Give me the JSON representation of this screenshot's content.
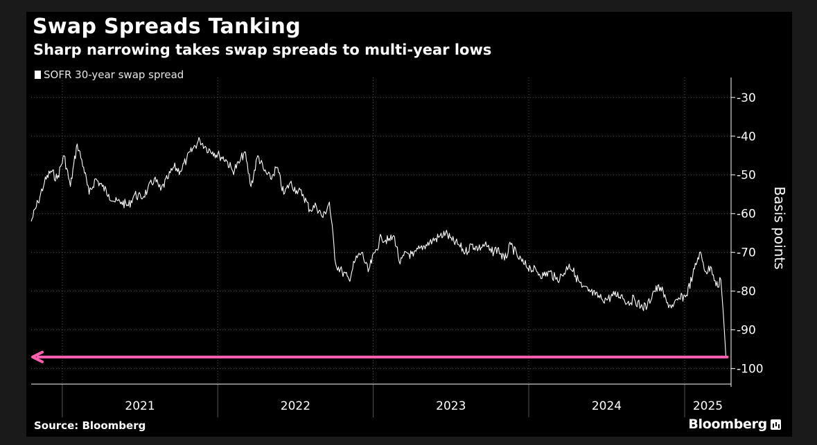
{
  "title": "Swap Spreads Tanking",
  "subtitle": "Sharp narrowing takes swap spreads to multi-year lows",
  "legend_label": "SOFR 30-year swap spread",
  "source": "Source: Bloomberg",
  "brand": "Bloomberg",
  "colors": {
    "background": "#000000",
    "series": "#ffffff",
    "arrow": "#ff5fb0",
    "grid": "#5a5a5a"
  },
  "chart_data": {
    "type": "line",
    "title": "Swap Spreads Tanking",
    "subtitle": "Sharp narrowing takes swap spreads to multi-year lows",
    "ylabel": "Basis points",
    "xlabel": "",
    "y_axis_side": "right",
    "ylim": [
      -104,
      -27
    ],
    "yticks": [
      -30,
      -40,
      -50,
      -60,
      -70,
      -80,
      -90,
      -100
    ],
    "ytick_labels": [
      "-30",
      "-40",
      "-50",
      "-60",
      "-70",
      "-80",
      "-90",
      "-100"
    ],
    "xlim": [
      "2020-10-20",
      "2025-04-20"
    ],
    "xticks": [
      "2021",
      "2022",
      "2023",
      "2024",
      "2025"
    ],
    "grid": true,
    "legend_position": "top-left",
    "series": [
      {
        "name": "SOFR 30-year swap spread",
        "color": "#ffffff",
        "x": [
          "2020-10-20",
          "2020-11-05",
          "2020-11-20",
          "2020-12-05",
          "2020-12-20",
          "2021-01-05",
          "2021-01-20",
          "2021-02-05",
          "2021-02-20",
          "2021-03-05",
          "2021-03-20",
          "2021-04-05",
          "2021-04-20",
          "2021-05-05",
          "2021-05-20",
          "2021-06-05",
          "2021-06-20",
          "2021-07-05",
          "2021-07-20",
          "2021-08-05",
          "2021-08-20",
          "2021-09-05",
          "2021-09-20",
          "2021-10-05",
          "2021-10-20",
          "2021-11-05",
          "2021-11-20",
          "2021-12-05",
          "2021-12-20",
          "2022-01-05",
          "2022-01-20",
          "2022-02-05",
          "2022-02-20",
          "2022-03-05",
          "2022-03-20",
          "2022-04-05",
          "2022-04-20",
          "2022-05-05",
          "2022-05-20",
          "2022-06-05",
          "2022-06-20",
          "2022-07-05",
          "2022-07-20",
          "2022-08-05",
          "2022-08-20",
          "2022-09-05",
          "2022-09-20",
          "2022-10-05",
          "2022-10-20",
          "2022-11-05",
          "2022-11-20",
          "2022-12-05",
          "2022-12-20",
          "2023-01-05",
          "2023-01-20",
          "2023-02-05",
          "2023-02-20",
          "2023-03-05",
          "2023-03-20",
          "2023-04-05",
          "2023-04-20",
          "2023-05-05",
          "2023-05-20",
          "2023-06-05",
          "2023-06-20",
          "2023-07-05",
          "2023-07-20",
          "2023-08-05",
          "2023-08-20",
          "2023-09-05",
          "2023-09-20",
          "2023-10-05",
          "2023-10-20",
          "2023-11-05",
          "2023-11-20",
          "2023-12-05",
          "2023-12-20",
          "2024-01-05",
          "2024-01-20",
          "2024-02-05",
          "2024-02-20",
          "2024-03-05",
          "2024-03-20",
          "2024-04-05",
          "2024-04-20",
          "2024-05-05",
          "2024-05-20",
          "2024-06-05",
          "2024-06-20",
          "2024-07-05",
          "2024-07-20",
          "2024-08-05",
          "2024-08-20",
          "2024-09-05",
          "2024-09-20",
          "2024-10-05",
          "2024-10-20",
          "2024-11-05",
          "2024-11-20",
          "2024-12-05",
          "2024-12-20",
          "2025-01-05",
          "2025-01-20",
          "2025-02-05",
          "2025-02-20",
          "2025-03-05",
          "2025-03-20",
          "2025-03-27",
          "2025-04-02",
          "2025-04-08",
          "2025-04-11"
        ],
        "values": [
          -62,
          -57,
          -52,
          -49,
          -51,
          -45,
          -53,
          -42,
          -48,
          -55,
          -51,
          -53,
          -55,
          -57,
          -57,
          -58,
          -55,
          -56,
          -54,
          -51,
          -54,
          -51,
          -48,
          -49,
          -46,
          -43,
          -41,
          -43,
          -44,
          -45,
          -46,
          -49,
          -47,
          -44,
          -53,
          -45,
          -49,
          -51,
          -48,
          -55,
          -52,
          -54,
          -55,
          -59,
          -58,
          -61,
          -57,
          -73,
          -75,
          -77,
          -72,
          -70,
          -75,
          -70,
          -66,
          -67,
          -66,
          -73,
          -70,
          -71,
          -69,
          -68,
          -67,
          -66,
          -65,
          -67,
          -68,
          -70,
          -68,
          -69,
          -68,
          -70,
          -69,
          -72,
          -68,
          -71,
          -73,
          -74,
          -75,
          -76,
          -75,
          -77,
          -76,
          -73,
          -76,
          -79,
          -80,
          -81,
          -82,
          -82,
          -81,
          -81,
          -83,
          -82,
          -84,
          -84,
          -80,
          -79,
          -83,
          -84,
          -82,
          -81,
          -76,
          -70,
          -75,
          -74,
          -79,
          -77,
          -86,
          -97,
          -97
        ]
      }
    ],
    "annotations": [
      {
        "type": "arrow",
        "description": "horizontal arrow pointing left from latest value",
        "y": -97,
        "x_from": "2025-04-11",
        "x_to": "2020-10-20",
        "color": "#ff5fb0"
      }
    ]
  }
}
